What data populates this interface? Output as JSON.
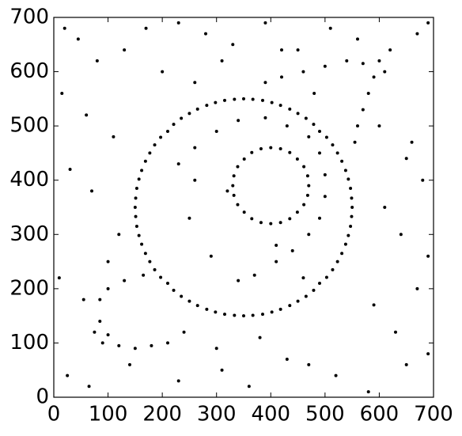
{
  "chart_data": {
    "type": "scatter",
    "color": "#000000",
    "xlim": [
      0,
      700
    ],
    "ylim": [
      0,
      700
    ],
    "xticks": [
      0,
      100,
      200,
      300,
      400,
      500,
      600,
      700
    ],
    "yticks": [
      0,
      100,
      200,
      300,
      400,
      500,
      600,
      700
    ],
    "x": [
      550,
      549,
      547,
      543,
      538,
      531,
      523,
      514,
      503,
      490,
      479,
      465,
      450,
      435,
      418,
      402,
      385,
      367,
      350,
      333,
      315,
      298,
      282,
      265,
      250,
      235,
      221,
      210,
      197,
      186,
      177,
      169,
      162,
      157,
      153,
      151,
      150,
      151,
      153,
      157,
      162,
      169,
      177,
      186,
      197,
      210,
      221,
      235,
      250,
      265,
      282,
      298,
      315,
      333,
      350,
      367,
      385,
      402,
      418,
      435,
      450,
      465,
      479,
      490,
      503,
      514,
      523,
      531,
      538,
      543,
      547,
      549,
      470,
      468,
      461,
      449,
      435,
      418,
      400,
      382,
      365,
      351,
      339,
      332,
      330,
      332,
      339,
      351,
      365,
      382,
      400,
      418,
      435,
      449,
      461,
      468,
      230,
      260,
      300,
      340,
      390,
      430,
      470,
      490,
      500,
      500,
      490,
      470,
      440,
      410,
      370,
      340,
      555,
      560,
      570,
      580,
      590,
      570,
      540,
      500,
      460,
      420,
      390,
      600,
      610,
      90,
      100,
      120,
      150,
      180,
      210,
      85,
      85,
      100,
      130,
      165,
      75,
      20,
      45,
      80,
      130,
      170,
      230,
      280,
      330,
      390,
      450,
      510,
      560,
      620,
      670,
      690,
      15,
      60,
      110,
      200,
      260,
      310,
      420,
      480,
      600,
      650,
      680,
      30,
      70,
      120,
      250,
      290,
      410,
      460,
      610,
      640,
      690,
      10,
      55,
      100,
      240,
      300,
      380,
      470,
      590,
      630,
      670,
      25,
      65,
      140,
      230,
      310,
      360,
      430,
      520,
      580,
      650,
      690,
      260,
      320,
      660
    ],
    "values": [
      350,
      367,
      385,
      402,
      418,
      435,
      450,
      465,
      479,
      490,
      503,
      514,
      523,
      531,
      538,
      543,
      547,
      549,
      550,
      549,
      547,
      543,
      538,
      531,
      523,
      514,
      503,
      490,
      479,
      465,
      450,
      435,
      418,
      402,
      385,
      367,
      350,
      333,
      315,
      298,
      282,
      265,
      250,
      235,
      221,
      210,
      197,
      186,
      177,
      169,
      162,
      157,
      153,
      151,
      150,
      151,
      153,
      157,
      162,
      169,
      177,
      186,
      197,
      210,
      221,
      235,
      250,
      265,
      282,
      298,
      315,
      333,
      390,
      408,
      425,
      439,
      451,
      458,
      460,
      458,
      451,
      439,
      425,
      408,
      390,
      372,
      355,
      341,
      329,
      322,
      320,
      322,
      329,
      341,
      355,
      372,
      430,
      460,
      490,
      510,
      515,
      500,
      480,
      450,
      410,
      370,
      330,
      300,
      270,
      250,
      225,
      215,
      470,
      500,
      530,
      560,
      590,
      615,
      620,
      610,
      600,
      590,
      580,
      620,
      600,
      100,
      115,
      95,
      90,
      95,
      100,
      140,
      180,
      200,
      215,
      225,
      120,
      680,
      660,
      620,
      640,
      680,
      690,
      670,
      650,
      690,
      640,
      680,
      660,
      640,
      670,
      690,
      560,
      520,
      480,
      600,
      580,
      620,
      640,
      560,
      500,
      440,
      400,
      420,
      380,
      300,
      330,
      260,
      280,
      220,
      350,
      300,
      260,
      220,
      180,
      250,
      120,
      90,
      110,
      60,
      170,
      120,
      200,
      40,
      20,
      60,
      30,
      50,
      20,
      70,
      40,
      10,
      60,
      80,
      400,
      380,
      470
    ]
  }
}
